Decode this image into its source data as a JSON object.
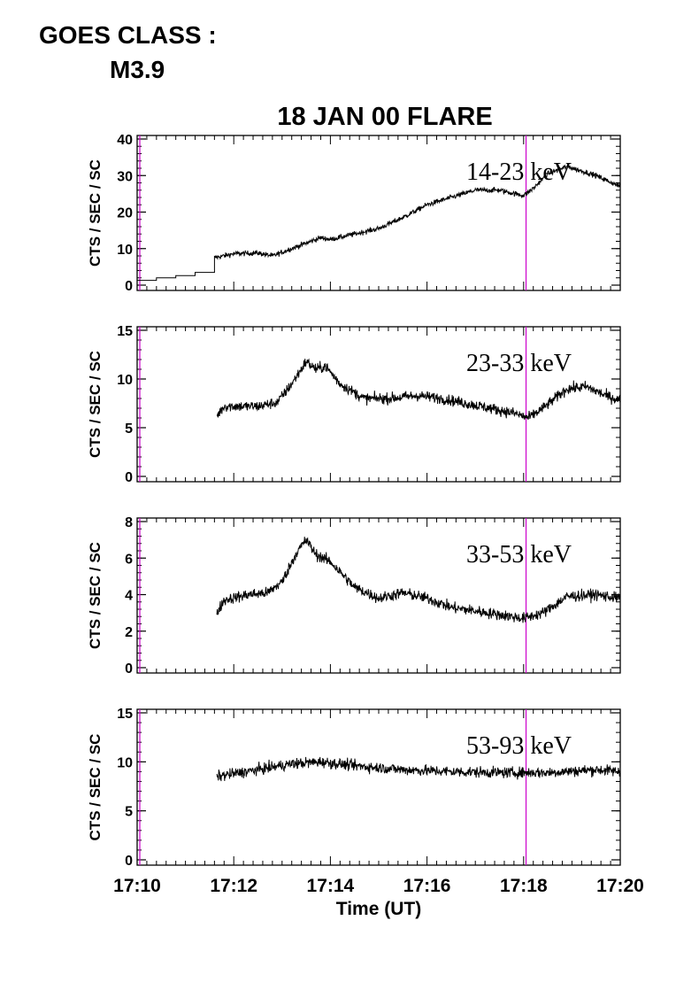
{
  "header": {
    "goes_label": "GOES CLASS :",
    "goes_class": "M3.9"
  },
  "chart_data": {
    "type": "line",
    "title": "18 JAN 00 FLARE",
    "xlabel": "Time (UT)",
    "x_tick_labels": [
      "17:10",
      "17:12",
      "17:14",
      "17:16",
      "17:18",
      "17:20"
    ],
    "x_range_minutes": [
      0,
      10
    ],
    "marker_time_minutes": 8.05,
    "colors": {
      "marker": "#cc00cc",
      "trace": "#000000"
    },
    "panels": [
      {
        "band": "14-23 keV",
        "ylabel": "CTS / SEC / SC",
        "ylim": [
          0,
          40
        ],
        "yticks": [
          0,
          10,
          20,
          30,
          40
        ],
        "steps": [
          {
            "t0": 0.0,
            "t1": 0.4,
            "y": 1.3
          },
          {
            "t0": 0.4,
            "t1": 0.8,
            "y": 2.0
          },
          {
            "t0": 0.8,
            "t1": 1.2,
            "y": 2.6
          },
          {
            "t0": 1.2,
            "t1": 1.6,
            "y": 3.5
          }
        ],
        "noise": 0.7,
        "trend": [
          {
            "t": 1.6,
            "y": 7.5
          },
          {
            "t": 2.0,
            "y": 8.6
          },
          {
            "t": 2.5,
            "y": 8.8
          },
          {
            "t": 2.8,
            "y": 8.0
          },
          {
            "t": 3.3,
            "y": 10.5
          },
          {
            "t": 3.8,
            "y": 13.0
          },
          {
            "t": 4.0,
            "y": 12.5
          },
          {
            "t": 4.5,
            "y": 14.0
          },
          {
            "t": 5.0,
            "y": 15.5
          },
          {
            "t": 5.5,
            "y": 18.5
          },
          {
            "t": 6.0,
            "y": 22.0
          },
          {
            "t": 6.5,
            "y": 24.0
          },
          {
            "t": 7.0,
            "y": 26.0
          },
          {
            "t": 7.5,
            "y": 26.0
          },
          {
            "t": 8.0,
            "y": 24.5
          },
          {
            "t": 8.2,
            "y": 26.5
          },
          {
            "t": 8.5,
            "y": 30.5
          },
          {
            "t": 8.9,
            "y": 32.5
          },
          {
            "t": 9.5,
            "y": 30.0
          },
          {
            "t": 10.0,
            "y": 27.0
          }
        ]
      },
      {
        "band": "23-33 keV",
        "ylabel": "CTS / SEC / SC",
        "ylim": [
          0,
          15
        ],
        "yticks": [
          0,
          5,
          10,
          15
        ],
        "start_minutes": 1.65,
        "noise": 0.55,
        "trend": [
          {
            "t": 1.65,
            "y": 6.2
          },
          {
            "t": 1.8,
            "y": 7.2
          },
          {
            "t": 2.5,
            "y": 7.2
          },
          {
            "t": 2.9,
            "y": 7.6
          },
          {
            "t": 3.2,
            "y": 9.5
          },
          {
            "t": 3.5,
            "y": 11.8
          },
          {
            "t": 3.7,
            "y": 11.0
          },
          {
            "t": 3.9,
            "y": 11.3
          },
          {
            "t": 4.2,
            "y": 9.5
          },
          {
            "t": 4.7,
            "y": 8.0
          },
          {
            "t": 5.2,
            "y": 8.0
          },
          {
            "t": 5.8,
            "y": 8.3
          },
          {
            "t": 6.3,
            "y": 8.0
          },
          {
            "t": 6.8,
            "y": 7.5
          },
          {
            "t": 7.3,
            "y": 7.0
          },
          {
            "t": 7.8,
            "y": 6.5
          },
          {
            "t": 8.1,
            "y": 6.0
          },
          {
            "t": 8.4,
            "y": 7.0
          },
          {
            "t": 8.9,
            "y": 9.0
          },
          {
            "t": 9.3,
            "y": 9.2
          },
          {
            "t": 9.7,
            "y": 8.3
          },
          {
            "t": 10.0,
            "y": 7.8
          }
        ]
      },
      {
        "band": "33-53 keV",
        "ylabel": "CTS / SEC / SC",
        "ylim": [
          0,
          8
        ],
        "yticks": [
          0,
          2,
          4,
          6,
          8
        ],
        "start_minutes": 1.65,
        "noise": 0.3,
        "trend": [
          {
            "t": 1.65,
            "y": 3.0
          },
          {
            "t": 1.8,
            "y": 3.7
          },
          {
            "t": 2.3,
            "y": 4.0
          },
          {
            "t": 2.7,
            "y": 4.1
          },
          {
            "t": 3.0,
            "y": 4.7
          },
          {
            "t": 3.3,
            "y": 6.3
          },
          {
            "t": 3.5,
            "y": 7.0
          },
          {
            "t": 3.7,
            "y": 6.2
          },
          {
            "t": 4.0,
            "y": 5.8
          },
          {
            "t": 4.5,
            "y": 4.4
          },
          {
            "t": 5.0,
            "y": 3.8
          },
          {
            "t": 5.5,
            "y": 4.1
          },
          {
            "t": 6.0,
            "y": 3.8
          },
          {
            "t": 6.5,
            "y": 3.3
          },
          {
            "t": 7.0,
            "y": 3.1
          },
          {
            "t": 7.5,
            "y": 2.9
          },
          {
            "t": 8.0,
            "y": 2.7
          },
          {
            "t": 8.4,
            "y": 3.0
          },
          {
            "t": 8.9,
            "y": 3.9
          },
          {
            "t": 9.5,
            "y": 4.0
          },
          {
            "t": 10.0,
            "y": 3.8
          }
        ]
      },
      {
        "band": "53-93 keV",
        "ylabel": "CTS / SEC / SC",
        "ylim": [
          0,
          15
        ],
        "yticks": [
          0,
          5,
          10,
          15
        ],
        "start_minutes": 1.65,
        "noise": 0.55,
        "trend": [
          {
            "t": 1.65,
            "y": 8.5
          },
          {
            "t": 2.5,
            "y": 9.2
          },
          {
            "t": 3.2,
            "y": 9.8
          },
          {
            "t": 3.8,
            "y": 10.0
          },
          {
            "t": 4.5,
            "y": 9.6
          },
          {
            "t": 5.5,
            "y": 9.2
          },
          {
            "t": 6.5,
            "y": 9.0
          },
          {
            "t": 7.5,
            "y": 8.9
          },
          {
            "t": 8.5,
            "y": 8.9
          },
          {
            "t": 9.5,
            "y": 9.2
          },
          {
            "t": 10.0,
            "y": 9.0
          }
        ]
      }
    ]
  }
}
